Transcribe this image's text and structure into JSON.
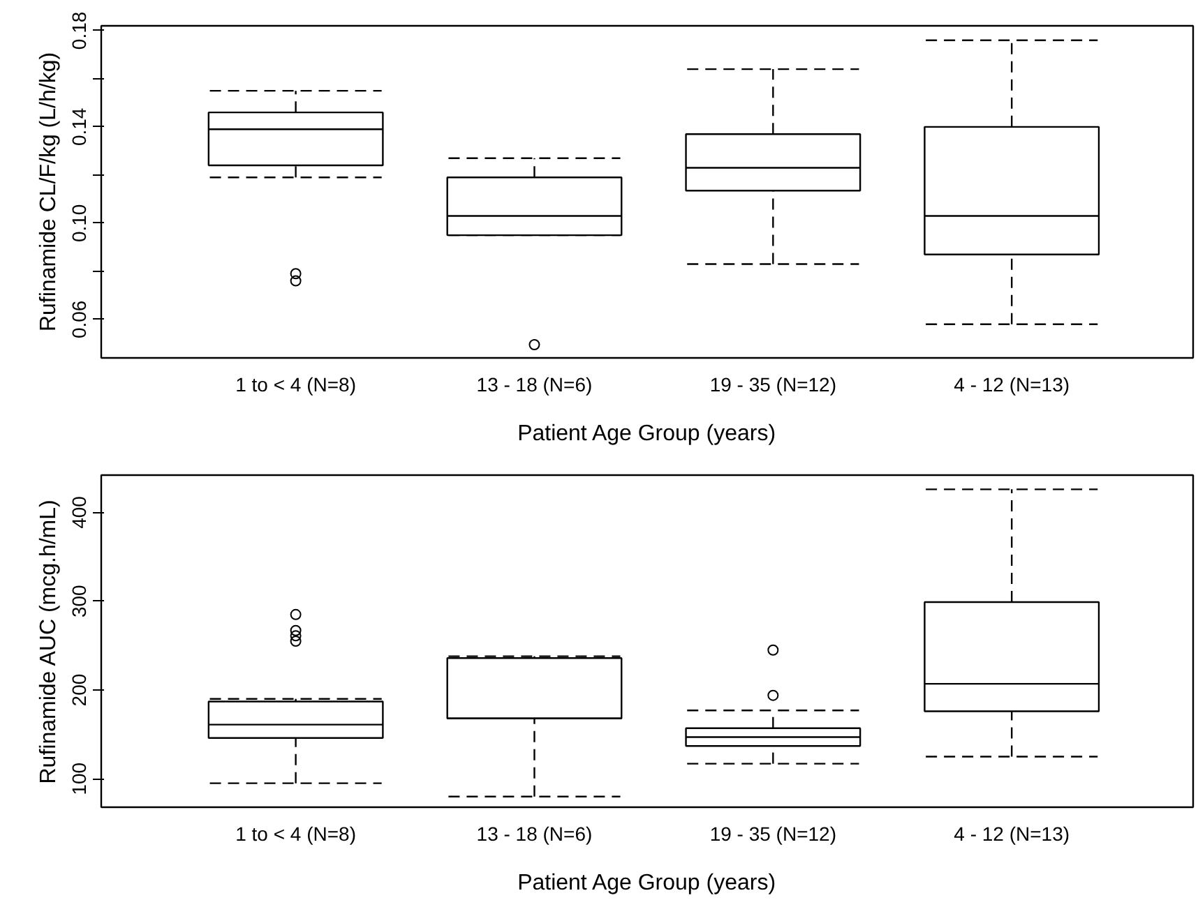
{
  "chart_data": [
    {
      "type": "box",
      "categories": [
        "1 to < 4 (N=8)",
        "13 - 18 (N=6)",
        "19 - 35 (N=12)",
        "4 - 12 (N=13)"
      ],
      "xlabel": "Patient Age Group (years)",
      "ylabel": "Rufinamide CL/F/kg (L/h/kg)",
      "ylim": [
        0.044,
        0.182
      ],
      "yticks": [
        0.06,
        {
          "value": 0.08,
          "label": null
        },
        "0.10",
        {
          "value": 0.12,
          "label": null
        },
        0.14,
        {
          "value": 0.16,
          "label": null
        },
        0.18
      ],
      "boxes": [
        {
          "low": 0.119,
          "q1": 0.124,
          "median": 0.139,
          "q3": 0.146,
          "high": 0.155,
          "outliers": [
            0.079,
            0.076
          ]
        },
        {
          "low": 0.095,
          "q1": 0.095,
          "median": 0.103,
          "q3": 0.119,
          "high": 0.127,
          "outliers": [
            0.0495
          ]
        },
        {
          "low": 0.083,
          "q1": 0.1135,
          "median": 0.123,
          "q3": 0.137,
          "high": 0.164
        },
        {
          "low": 0.058,
          "q1": 0.087,
          "median": 0.103,
          "q3": 0.14,
          "high": 0.176
        }
      ]
    },
    {
      "type": "box",
      "categories": [
        "1 to < 4 (N=8)",
        "13 - 18 (N=6)",
        "19 - 35 (N=12)",
        "4 - 12 (N=13)"
      ],
      "xlabel": "Patient Age Group (years)",
      "ylabel": "Rufinamide AUC (mcg.h/mL)",
      "ylim": [
        68,
        442
      ],
      "yticks": [
        100,
        200,
        300,
        400
      ],
      "boxes": [
        {
          "low": 95,
          "q1": 146,
          "median": 161,
          "q3": 187,
          "high": 190,
          "outliers": [
            285,
            267,
            261,
            255
          ]
        },
        {
          "low": 80,
          "q1": 168,
          "median": 168,
          "q3": 236,
          "high": 238
        },
        {
          "low": 117,
          "q1": 137,
          "median": 147,
          "q3": 157,
          "high": 177,
          "outliers": [
            245,
            194
          ]
        },
        {
          "low": 125,
          "q1": 176,
          "median": 207,
          "q3": 299,
          "high": 426
        }
      ]
    }
  ]
}
